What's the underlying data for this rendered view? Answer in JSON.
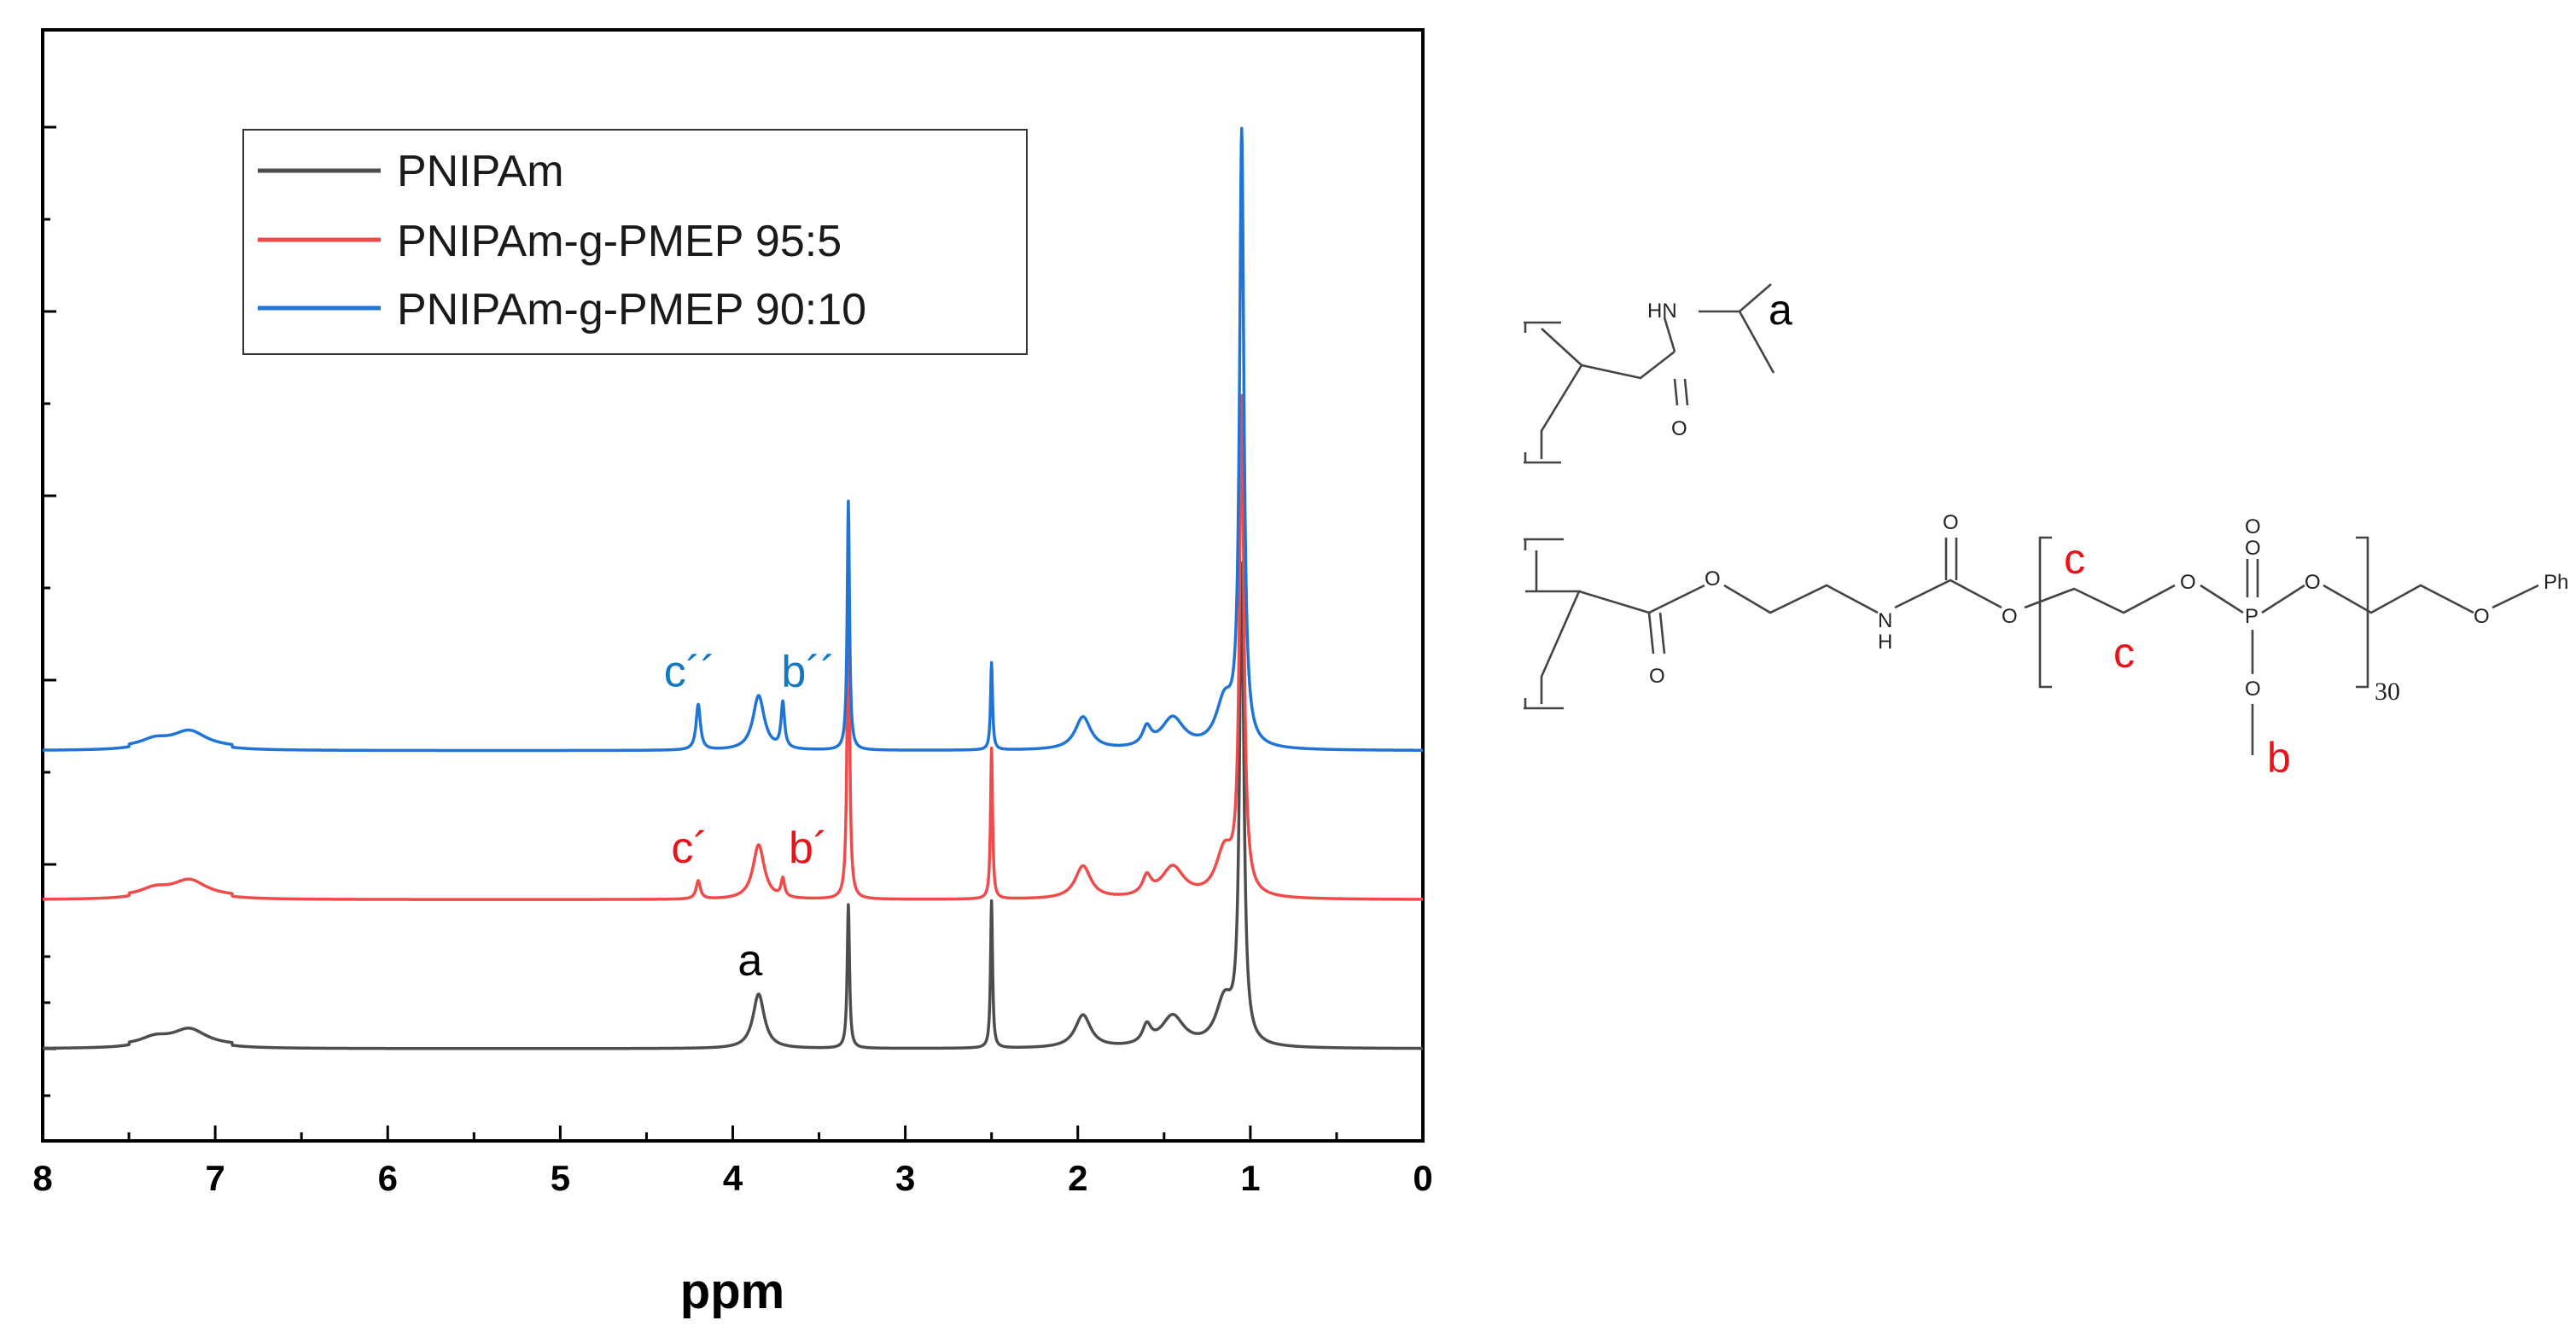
{
  "chart_data": {
    "type": "line",
    "xlabel": "ppm",
    "xlim": [
      8,
      0
    ],
    "x_reversed": true,
    "x_ticks": [
      "8",
      "7",
      "6",
      "5",
      "4",
      "3",
      "2",
      "1",
      "0"
    ],
    "y_tick_labels_shown": false,
    "legend": {
      "placement": "top-left",
      "entries": [
        "PNIPAm",
        "PNIPAm-g-PMEP 95:5",
        "PNIPAm-g-PMEP 90:10"
      ]
    },
    "series": [
      {
        "name": "PNIPAm",
        "color": "#4d4d4d",
        "baseline": 0,
        "peaks": [
          {
            "ppm": 7.15,
            "height": 0.09,
            "width": 0.12
          },
          {
            "ppm": 7.35,
            "height": 0.04,
            "width": 0.1
          },
          {
            "ppm": 3.85,
            "height": 0.3,
            "width": 0.04
          },
          {
            "ppm": 3.33,
            "height": 0.79,
            "width": 0.008
          },
          {
            "ppm": 2.5,
            "height": 0.81,
            "width": 0.007
          },
          {
            "ppm": 1.97,
            "height": 0.18,
            "width": 0.055
          },
          {
            "ppm": 1.6,
            "height": 0.1,
            "width": 0.03
          },
          {
            "ppm": 1.45,
            "height": 0.17,
            "width": 0.08
          },
          {
            "ppm": 1.05,
            "height": 2.6,
            "width": 0.015
          },
          {
            "ppm": 1.15,
            "height": 0.25,
            "width": 0.06
          }
        ]
      },
      {
        "name": "PNIPAm-g-PMEP 95:5",
        "color": "#f04b4b",
        "baseline": 0.82,
        "peaks": [
          {
            "ppm": 7.15,
            "height": 0.09,
            "width": 0.12
          },
          {
            "ppm": 7.35,
            "height": 0.04,
            "width": 0.1
          },
          {
            "ppm": 4.2,
            "height": 0.1,
            "width": 0.015
          },
          {
            "ppm": 3.85,
            "height": 0.3,
            "width": 0.04
          },
          {
            "ppm": 3.71,
            "height": 0.1,
            "width": 0.012
          },
          {
            "ppm": 3.33,
            "height": 1.9,
            "width": 0.008
          },
          {
            "ppm": 2.5,
            "height": 0.83,
            "width": 0.007
          },
          {
            "ppm": 1.97,
            "height": 0.18,
            "width": 0.055
          },
          {
            "ppm": 1.6,
            "height": 0.1,
            "width": 0.03
          },
          {
            "ppm": 1.45,
            "height": 0.17,
            "width": 0.08
          },
          {
            "ppm": 1.05,
            "height": 2.7,
            "width": 0.015
          },
          {
            "ppm": 1.15,
            "height": 0.25,
            "width": 0.06
          }
        ]
      },
      {
        "name": "PNIPAm-g-PMEP 90:10",
        "color": "#1f74d6",
        "baseline": 1.64,
        "peaks": [
          {
            "ppm": 7.15,
            "height": 0.09,
            "width": 0.12
          },
          {
            "ppm": 7.35,
            "height": 0.04,
            "width": 0.1
          },
          {
            "ppm": 4.2,
            "height": 0.25,
            "width": 0.015
          },
          {
            "ppm": 3.85,
            "height": 0.3,
            "width": 0.04
          },
          {
            "ppm": 3.71,
            "height": 0.25,
            "width": 0.012
          },
          {
            "ppm": 3.33,
            "height": 1.37,
            "width": 0.008
          },
          {
            "ppm": 2.5,
            "height": 0.48,
            "width": 0.007
          },
          {
            "ppm": 1.97,
            "height": 0.18,
            "width": 0.055
          },
          {
            "ppm": 1.6,
            "height": 0.1,
            "width": 0.03
          },
          {
            "ppm": 1.45,
            "height": 0.17,
            "width": 0.08
          },
          {
            "ppm": 1.05,
            "height": 3.35,
            "width": 0.015
          },
          {
            "ppm": 1.15,
            "height": 0.25,
            "width": 0.06
          }
        ]
      }
    ],
    "annotations": [
      {
        "text": "a",
        "ppm": 3.85,
        "series": "PNIPAm",
        "color": "#000000"
      },
      {
        "text": "c´",
        "ppm": 4.2,
        "series": "PNIPAm-g-PMEP 95:5",
        "color": "#e8141b"
      },
      {
        "text": "b´",
        "ppm": 3.71,
        "series": "PNIPAm-g-PMEP 95:5",
        "color": "#e8141b"
      },
      {
        "text": "c´´",
        "ppm": 4.2,
        "series": "PNIPAm-g-PMEP 90:10",
        "color": "#1378bf"
      },
      {
        "text": "b´´",
        "ppm": 3.71,
        "series": "PNIPAm-g-PMEP 90:10",
        "color": "#1378bf"
      }
    ]
  },
  "structures": {
    "atom_labels": {
      "nh_top": "HN",
      "carbonyl_o_top": "O",
      "ester_o_double": "O",
      "ester_o": "O",
      "carbamate_nh": "N",
      "carbamate_h": "H",
      "carbamate_o_double": "O",
      "carbamate_o": "O",
      "phosphate_o1": "O",
      "phosphorus": "P",
      "phosphate_o_double": "O",
      "phosphate_o_double2": "O",
      "phosphate_o2": "O",
      "phosphate_o_methyl": "O",
      "ether_o": "O",
      "phenyl": "Ph"
    },
    "subscript_repeat": "30",
    "proton_labels": {
      "a": "a",
      "b": "b",
      "c_upper": "c",
      "c_lower": "c"
    },
    "colors": {
      "label_a": "#000000",
      "label_bc": "#e8141b"
    }
  }
}
